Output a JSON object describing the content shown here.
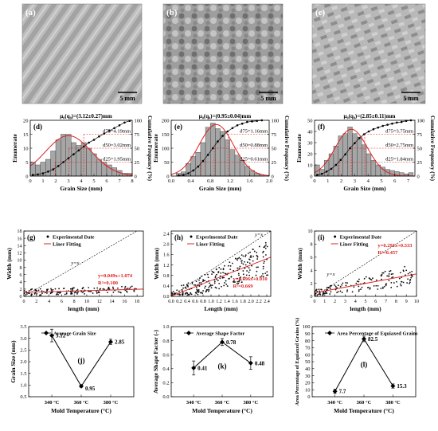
{
  "micro": [
    {
      "label": "(a)",
      "scale": "5 mm"
    },
    {
      "label": "(b)",
      "scale": "5 mm"
    },
    {
      "label": "(c)",
      "scale": "5 mm"
    }
  ],
  "chart_data": [
    {
      "type": "bar",
      "panel": "(d)",
      "title": "μ₀(q₀)=(3.12±0.27)mm",
      "xlabel": "Grain Size (mm)",
      "ylabel": "Enumerate",
      "y2label": "Cumulative Frequency (%)",
      "xlim": [
        0,
        8
      ],
      "ylim": [
        0,
        20
      ],
      "y2lim": [
        0,
        100
      ],
      "xticks": [
        0,
        1,
        2,
        3,
        4,
        5,
        6,
        7,
        8
      ],
      "yticks": [
        0,
        5,
        10,
        15,
        20
      ],
      "y2ticks": [
        0,
        25,
        50,
        75,
        100
      ],
      "bin_width": 0.4,
      "bin_centers": [
        0.2,
        0.6,
        1.0,
        1.4,
        1.8,
        2.2,
        2.6,
        3.0,
        3.4,
        3.8,
        4.2,
        4.6,
        5.0,
        5.4,
        5.8,
        6.2,
        6.6,
        7.0,
        7.4,
        7.8
      ],
      "values": [
        5,
        4,
        5,
        6,
        9,
        13,
        15,
        15,
        12,
        11,
        12,
        10,
        8,
        6,
        5,
        4,
        3,
        2,
        1,
        1
      ],
      "cumulative": [
        2,
        3,
        5,
        8,
        12,
        18,
        25,
        32,
        39,
        46,
        53,
        60,
        65,
        71,
        76,
        81,
        86,
        91,
        96,
        99
      ],
      "fit_peak": {
        "mean": 3.0,
        "height": 14.5,
        "sd": 1.8
      },
      "annotations": [
        "d75=4.19mm",
        "d50=3.02mm",
        "d25=1.95mm"
      ],
      "d_values": [
        4.19,
        3.02,
        1.95
      ]
    },
    {
      "type": "bar",
      "panel": "(e)",
      "title": "μ₀(q₀)=(0.95±0.04)mm",
      "xlabel": "Grain Size (mm)",
      "ylabel": "Enumerate",
      "y2label": "Cumulative Frequency (%)",
      "xlim": [
        0,
        2.0
      ],
      "ylim": [
        0,
        200
      ],
      "y2lim": [
        0,
        100
      ],
      "xticks": [
        "0.0",
        "0.4",
        "0.8",
        "1.2",
        "1.6",
        "2.0"
      ],
      "yticks": [
        0,
        50,
        100,
        150,
        200
      ],
      "y2ticks": [
        0,
        25,
        50,
        75,
        100
      ],
      "bin_width": 0.1,
      "bin_centers": [
        0.15,
        0.25,
        0.35,
        0.45,
        0.55,
        0.65,
        0.75,
        0.85,
        0.95,
        1.05,
        1.15,
        1.25,
        1.35,
        1.45,
        1.55,
        1.65,
        1.75,
        1.85
      ],
      "values": [
        10,
        15,
        45,
        70,
        85,
        120,
        175,
        190,
        170,
        160,
        130,
        95,
        75,
        55,
        35,
        20,
        10,
        5
      ],
      "cumulative": [
        1,
        2,
        5,
        10,
        17,
        27,
        38,
        50,
        62,
        72,
        80,
        86,
        91,
        94,
        97,
        98,
        99,
        100
      ],
      "fit_peak": {
        "mean": 0.92,
        "height": 185,
        "sd": 0.35
      },
      "annotations": [
        "d75=1.16mm",
        "d50=0.88mm",
        "d25=0.61mm"
      ],
      "d_values": [
        1.16,
        0.88,
        0.61
      ]
    },
    {
      "type": "bar",
      "panel": "(f)",
      "title": "μ₀(q₀)=(2.85±0.11)mm",
      "xlabel": "Grain Size (mm)",
      "ylabel": "Enumerate",
      "y2label": "Cumulative Frequency (%)",
      "xlim": [
        0,
        7.5
      ],
      "ylim": [
        0,
        50
      ],
      "y2lim": [
        0,
        100
      ],
      "xticks": [
        0,
        1,
        2,
        3,
        4,
        5,
        6,
        7
      ],
      "yticks": [
        0,
        10,
        20,
        30,
        40,
        50
      ],
      "y2ticks": [
        0,
        25,
        50,
        75,
        100
      ],
      "bin_width": 0.35,
      "bin_centers": [
        0.2,
        0.55,
        0.9,
        1.25,
        1.6,
        1.95,
        2.3,
        2.65,
        3.0,
        3.35,
        3.7,
        4.05,
        4.4,
        4.75,
        5.1,
        5.45,
        5.8,
        6.15,
        6.5,
        6.85,
        7.2
      ],
      "values": [
        10,
        6,
        14,
        20,
        27,
        36,
        38,
        44,
        38,
        35,
        28,
        20,
        14,
        10,
        8,
        6,
        5,
        4,
        3,
        2,
        3
      ],
      "cumulative": [
        2,
        4,
        8,
        13,
        20,
        29,
        39,
        50,
        59,
        68,
        75,
        80,
        84,
        87,
        90,
        92,
        94,
        96,
        97,
        99,
        100
      ],
      "fit_peak": {
        "mean": 2.75,
        "height": 42,
        "sd": 1.2
      },
      "annotations": [
        "d75=3.75mm",
        "d50=2.75mm",
        "d25=1.84mm"
      ],
      "d_values": [
        3.75,
        2.75,
        1.84
      ]
    },
    {
      "type": "scatter",
      "panel": "(g)",
      "xlabel": "length (mm)",
      "ylabel": "Width (mm)",
      "xlim": [
        0,
        19
      ],
      "ylim": [
        0,
        18
      ],
      "xticks": [
        0,
        2,
        4,
        6,
        8,
        10,
        12,
        14,
        16,
        18
      ],
      "yticks": [
        0,
        2,
        4,
        6,
        8,
        10,
        12,
        14,
        16,
        18
      ],
      "legend": [
        "Experimental Date",
        "Liner Fitting"
      ],
      "diag_label": "y=x",
      "fit": {
        "slope": 0.049,
        "intercept": 1.074,
        "eq": "y=0.049x+1.074",
        "r2": "R²=0.100"
      }
    },
    {
      "type": "scatter",
      "panel": "(h)",
      "xlabel": "Length (mm)",
      "ylabel": "Width (mm)",
      "xlim": [
        0,
        2.5
      ],
      "ylim": [
        0,
        2.5
      ],
      "xticks": [
        "0.0",
        "0.2",
        "0.4",
        "0.6",
        "0.8",
        "1.0",
        "1.2",
        "1.4",
        "1.6",
        "1.8",
        "2.0",
        "2.2",
        "2.4"
      ],
      "yticks": [
        "0.0",
        "0.4",
        "0.8",
        "1.2",
        "1.6",
        "2.0",
        "2.4"
      ],
      "legend": [
        "Experimental Date",
        "Liner Fitting"
      ],
      "diag_label": "y=x",
      "fit": {
        "slope": 0.596,
        "intercept": 0.01,
        "eq": "y=0.596x+0.010",
        "r2": "R²=0.669"
      }
    },
    {
      "type": "scatter",
      "panel": "(i)",
      "xlabel": "length (mm)",
      "ylabel": "Width (mm)",
      "xlim": [
        0,
        10
      ],
      "ylim": [
        0,
        10
      ],
      "xticks": [
        0,
        1,
        2,
        3,
        4,
        5,
        6,
        7,
        8,
        9,
        10
      ],
      "yticks": [
        0,
        2,
        4,
        6,
        8,
        10
      ],
      "legend": [
        "Experimental Date",
        "Liner Fitting"
      ],
      "diag_label": "y=x",
      "fit": {
        "slope": 0.291,
        "intercept": 0.533,
        "eq": "y=0.291x+0.533",
        "r2": "R²=0.457"
      }
    },
    {
      "type": "line",
      "panel": "(j)",
      "legend": "Average Grain Size",
      "xlabel": "Mold Temperature (°C)",
      "ylabel": "Grain Size (mm)",
      "categories": [
        "340 °C",
        "360 °C",
        "380 °C"
      ],
      "values": [
        3.12,
        0.95,
        2.85
      ],
      "errors": [
        0.27,
        0.04,
        0.11
      ],
      "value_labels": [
        "3.12",
        "0.95",
        "2.85"
      ],
      "ylim": [
        0.5,
        3.5
      ],
      "yticks": [
        "0.5",
        "1.0",
        "1.5",
        "2.0",
        "2.5",
        "3.0",
        "3.5"
      ]
    },
    {
      "type": "line",
      "panel": "(k)",
      "legend": "Average Shape Factor",
      "xlabel": "Mold Temperature (°C)",
      "ylabel": "Average Shape Factor (-)",
      "categories": [
        "340 °C",
        "360 °C",
        "380 °C"
      ],
      "values": [
        0.41,
        0.78,
        0.48
      ],
      "errors": [
        0.1,
        0.05,
        0.09
      ],
      "value_labels": [
        "0.41",
        "0.78",
        "0.48"
      ],
      "ylim": [
        0,
        1.0
      ],
      "yticks": [
        "0.0",
        "0.2",
        "0.4",
        "0.6",
        "0.8",
        "1.0"
      ]
    },
    {
      "type": "line",
      "panel": "(l)",
      "legend": "Area Percentage of Equiaxed Grains",
      "xlabel": "Mold Temperature (°C)",
      "ylabel": "Area Percentage of Equiaxed Grains (%)",
      "categories": [
        "340 °C",
        "360 °C",
        "380 °C"
      ],
      "values": [
        7.7,
        82.5,
        15.3
      ],
      "errors": [
        3,
        4,
        3
      ],
      "value_labels": [
        "7.7",
        "82.5",
        "15.3"
      ],
      "ylim": [
        0,
        100
      ],
      "yticks": [
        0,
        10,
        20,
        30,
        40,
        50,
        60,
        70,
        80,
        90,
        100
      ]
    }
  ]
}
